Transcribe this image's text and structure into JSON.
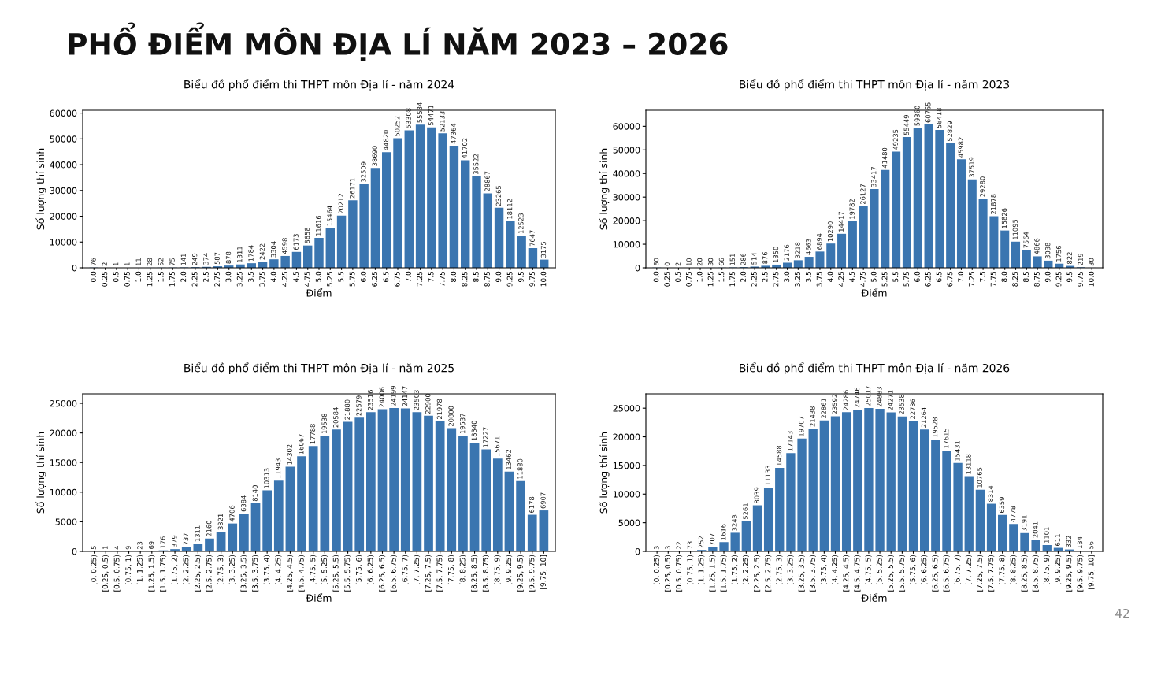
{
  "chart_data": [
    {
      "type": "other",
      "title": "PHỔ ĐIỂM MÔN ĐỊA LÍ NĂM 2023 – 2026",
      "annotations": [
        "42"
      ]
    },
    {
      "type": "bar",
      "title": "Biểu đồ phổ điểm thi THPT môn Địa lí - năm 2024",
      "xlabel": "Điểm",
      "ylabel": "Số lượng thí sinh",
      "color": "#3a75b0",
      "data_labels": true,
      "grid": false,
      "ylim": [
        0,
        61100
      ],
      "yticks": [
        0,
        10000,
        20000,
        30000,
        40000,
        50000,
        60000
      ],
      "categories": [
        "0.0",
        "0.25",
        "0.5",
        "0.75",
        "1.0",
        "1.25",
        "1.5",
        "1.75",
        "2.0",
        "2.25",
        "2.5",
        "2.75",
        "3.0",
        "3.25",
        "3.5",
        "3.75",
        "4.0",
        "4.25",
        "4.5",
        "4.75",
        "5.0",
        "5.25",
        "5.5",
        "5.75",
        "6.0",
        "6.25",
        "6.5",
        "6.75",
        "7.0",
        "7.25",
        "7.5",
        "7.75",
        "8.0",
        "8.25",
        "8.5",
        "8.75",
        "9.0",
        "9.25",
        "9.5",
        "9.75",
        "10.0"
      ],
      "values": [
        76,
        2,
        1,
        1,
        11,
        28,
        52,
        75,
        141,
        249,
        374,
        587,
        878,
        1311,
        1784,
        2422,
        3304,
        4598,
        6173,
        8658,
        11616,
        15464,
        20212,
        26171,
        32509,
        38690,
        44820,
        50252,
        53308,
        55534,
        54471,
        52133,
        47364,
        41702,
        35522,
        28867,
        23265,
        18112,
        12523,
        7647,
        3175
      ]
    },
    {
      "type": "bar",
      "title": "Biểu đồ phổ điểm thi THPT môn Địa lí - năm 2023",
      "xlabel": "Điểm",
      "ylabel": "Số lượng thí sinh",
      "color": "#3a75b0",
      "data_labels": true,
      "grid": false,
      "ylim": [
        0,
        66800
      ],
      "yticks": [
        0,
        10000,
        20000,
        30000,
        40000,
        50000,
        60000
      ],
      "categories": [
        "0.0",
        "0.25",
        "0.5",
        "0.75",
        "1.0",
        "1.25",
        "1.5",
        "1.75",
        "2.0",
        "2.25",
        "2.5",
        "2.75",
        "3.0",
        "3.25",
        "3.5",
        "3.75",
        "4.0",
        "4.25",
        "4.5",
        "4.75",
        "5.0",
        "5.25",
        "5.5",
        "5.75",
        "6.0",
        "6.25",
        "6.5",
        "6.75",
        "7.0",
        "7.25",
        "7.5",
        "7.75",
        "8.0",
        "8.25",
        "8.5",
        "8.75",
        "9.0",
        "9.25",
        "9.5",
        "9.75",
        "10.0"
      ],
      "values": [
        80,
        0,
        2,
        10,
        20,
        30,
        66,
        151,
        286,
        514,
        876,
        1350,
        2176,
        3218,
        4663,
        6894,
        10290,
        14417,
        19782,
        26127,
        33417,
        41480,
        49235,
        55449,
        59360,
        60765,
        58418,
        52829,
        45982,
        37519,
        29280,
        21878,
        15826,
        11095,
        7564,
        4866,
        3038,
        1756,
        822,
        219,
        30
      ]
    },
    {
      "type": "bar",
      "title": "Biểu đồ phổ điểm thi THPT môn Địa lí - năm 2025",
      "xlabel": "Điểm",
      "ylabel": "Số lượng thí sinh",
      "color": "#3a75b0",
      "data_labels": true,
      "grid": false,
      "ylim": [
        0,
        26600
      ],
      "yticks": [
        0,
        5000,
        10000,
        15000,
        20000,
        25000
      ],
      "categories": [
        "[0, 0.25)",
        "[0.25, 0.5)",
        "[0.5, 0.75)",
        "[0.75, 1)",
        "[1, 1.25)",
        "[1.25, 1.5)",
        "[1.5, 1.75)",
        "[1.75, 2)",
        "[2, 2.25)",
        "[2.25, 2.5)",
        "[2.5, 2.75)",
        "[2.75, 3)",
        "[3, 3.25)",
        "[3.25, 3.5)",
        "[3.5, 3.75)",
        "[3.75, 4)",
        "[4, 4.25)",
        "[4.25, 4.5)",
        "[4.5, 4.75)",
        "[4.75, 5)",
        "[5, 5.25)",
        "[5.25, 5.5)",
        "[5.5, 5.75)",
        "[5.75, 6)",
        "[6, 6.25)",
        "[6.25, 6.5)",
        "[6.5, 6.75)",
        "[6.75, 7)",
        "[7, 7.25)",
        "[7.25, 7.5)",
        "[7.5, 7.75)",
        "[7.75, 8)",
        "[8, 8.25)",
        "[8.25, 8.5)",
        "[8.5, 8.75)",
        "[8.75, 9)",
        "[9, 9.25)",
        "[9.25, 9.5)",
        "[9.5, 9.75)",
        "[9.75, 10]"
      ],
      "values": [
        5,
        1,
        4,
        9,
        23,
        69,
        176,
        379,
        737,
        1311,
        2160,
        3321,
        4706,
        6384,
        8140,
        10313,
        11943,
        14302,
        16067,
        17788,
        19538,
        20584,
        21880,
        22579,
        23516,
        24006,
        24199,
        24147,
        23503,
        22900,
        21978,
        20800,
        19537,
        18340,
        17227,
        15671,
        13462,
        11880,
        6178,
        6907
      ]
    },
    {
      "type": "bar",
      "title": "Biểu đồ phổ điểm thi THPT môn Địa lí - năm 2026",
      "xlabel": "Điểm",
      "ylabel": "Số lượng thí sinh",
      "color": "#3a75b0",
      "data_labels": true,
      "grid": false,
      "ylim": [
        0,
        27500
      ],
      "yticks": [
        0,
        5000,
        10000,
        15000,
        20000,
        25000
      ],
      "categories": [
        "[0, 0.25)",
        "[0.25, 0.5)",
        "[0.5, 0.75)",
        "[0.75, 1)",
        "[1, 1.25)",
        "[1.25, 1.5)",
        "[1.5, 1.75)",
        "[1.75, 2)",
        "[2, 2.25)",
        "[2.25, 2.5)",
        "[2.5, 2.75)",
        "[2.75, 3)",
        "[3, 3.25)",
        "[3.25, 3.5)",
        "[3.5, 3.75)",
        "[3.75, 4)",
        "[4, 4.25)",
        "[4.25, 4.5)",
        "[4.5, 4.75)",
        "[4.75, 5)",
        "[5, 5.25)",
        "[5.25, 5.5)",
        "[5.5, 5.75)",
        "[5.75, 6)",
        "[6, 6.25)",
        "[6.25, 6.5)",
        "[6.5, 6.75)",
        "[6.75, 7)",
        "[7, 7.25)",
        "[7.25, 7.5)",
        "[7.5, 7.75)",
        "[7.75, 8)",
        "[8, 8.25)",
        "[8.25, 8.5)",
        "[8.5, 8.75)",
        "[8.75, 9)",
        "[9, 9.25)",
        "[9.25, 9.5)",
        "[9.5, 9.75)",
        "[9.75, 10]"
      ],
      "values": [
        3,
        3,
        22,
        73,
        252,
        707,
        1616,
        3243,
        5261,
        8039,
        11133,
        14588,
        17143,
        19707,
        21438,
        22861,
        23592,
        24286,
        24746,
        25017,
        24883,
        24271,
        23538,
        22736,
        21264,
        19528,
        17615,
        15431,
        13118,
        10765,
        8314,
        6359,
        4778,
        3191,
        2041,
        1101,
        611,
        332,
        134,
        56
      ]
    }
  ]
}
